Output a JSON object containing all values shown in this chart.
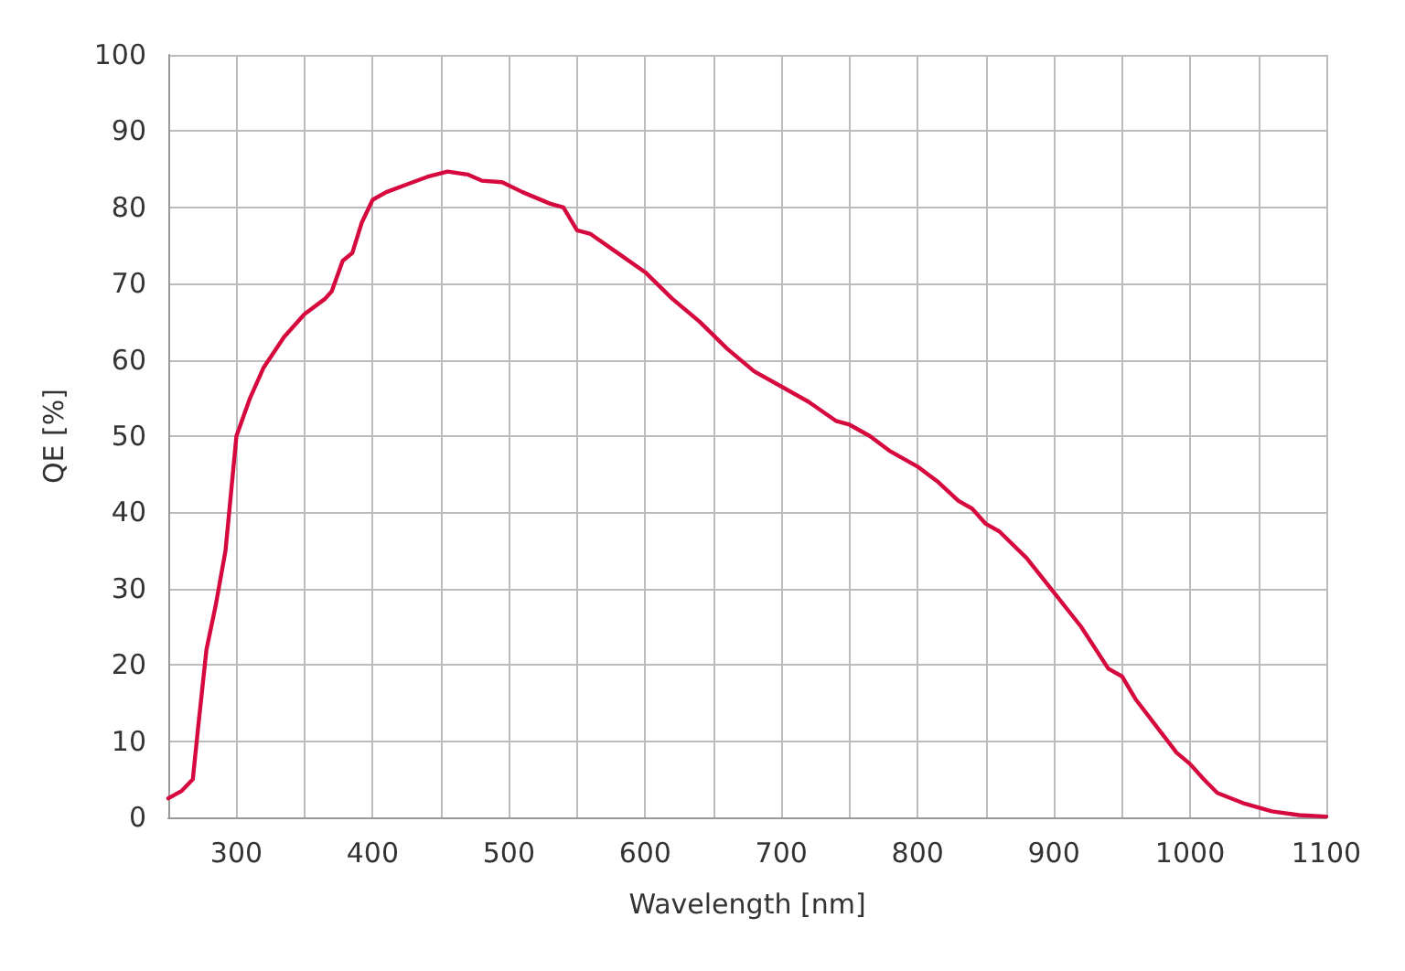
{
  "chart_data": {
    "type": "line",
    "xlabel": "Wavelength [nm]",
    "ylabel": "QE [%]",
    "x": [
      250,
      260,
      268,
      272,
      278,
      285,
      292,
      300,
      310,
      320,
      335,
      350,
      365,
      370,
      378,
      385,
      392,
      400,
      410,
      425,
      440,
      455,
      470,
      480,
      495,
      510,
      530,
      540,
      550,
      560,
      580,
      600,
      620,
      640,
      660,
      680,
      700,
      720,
      740,
      750,
      765,
      780,
      800,
      815,
      830,
      840,
      850,
      860,
      880,
      900,
      920,
      940,
      950,
      960,
      975,
      990,
      1000,
      1010,
      1020,
      1040,
      1060,
      1080,
      1100
    ],
    "series": [
      {
        "color": "#d6093f",
        "values": [
          2.5,
          3.5,
          5,
          12,
          22,
          28,
          35,
          50,
          55,
          59,
          63,
          66,
          68,
          69,
          73,
          74,
          78,
          81,
          82,
          83,
          84,
          84.7,
          84.3,
          83.5,
          83.3,
          82,
          80.5,
          80,
          77,
          76.5,
          74,
          71.5,
          68,
          65,
          61.5,
          58.5,
          56.5,
          54.5,
          52,
          51.5,
          50,
          48,
          46,
          44,
          41.5,
          40.5,
          38.5,
          37.5,
          34,
          29.5,
          25,
          19.5,
          18.5,
          15.5,
          12,
          8.5,
          7,
          5,
          3.2,
          1.8,
          0.8,
          0.3,
          0.1
        ]
      }
    ],
    "xlim": [
      250,
      1100
    ],
    "xticks": [
      {
        "value": 250,
        "label": null
      },
      300,
      {
        "value": 350,
        "label": null
      },
      400,
      {
        "value": 450,
        "label": null
      },
      500,
      {
        "value": 550,
        "label": null
      },
      600,
      {
        "value": 650,
        "label": null
      },
      700,
      {
        "value": 750,
        "label": null
      },
      800,
      {
        "value": 850,
        "label": null
      },
      900,
      {
        "value": 950,
        "label": null
      },
      1000,
      {
        "value": 1050,
        "label": null
      },
      1100
    ],
    "ylim": [
      0,
      100
    ],
    "yticks": [
      0,
      10,
      20,
      30,
      40,
      50,
      60,
      70,
      80,
      90,
      100
    ],
    "grid": true,
    "marker": "none",
    "line_style": "solid"
  }
}
